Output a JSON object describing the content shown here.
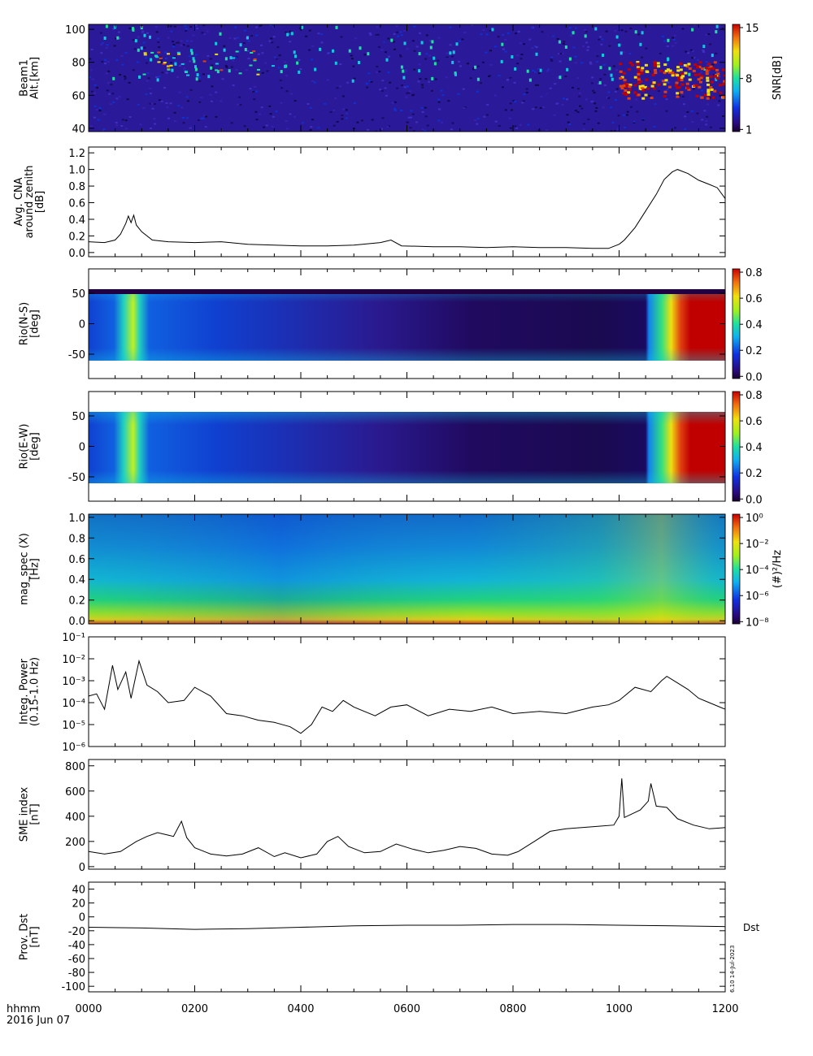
{
  "footer": {
    "time_label": "hhmm",
    "date_label": "2016 Jun 07"
  },
  "x_ticks": [
    "0000",
    "0200",
    "0400",
    "0600",
    "0800",
    "1000",
    "1200"
  ],
  "colors": {
    "plot_line": "#000000",
    "background": "#ffffff"
  },
  "chart_data": [
    {
      "type": "heatmap",
      "name": "beam1",
      "ylabel": [
        "Beam1",
        "Alt.[km]"
      ],
      "yticks": [
        "40",
        "60",
        "80",
        "100"
      ],
      "ylim": [
        38,
        103
      ],
      "colorbar": {
        "label": "SNR[dB]",
        "ticks": [
          "1",
          "8",
          "15"
        ],
        "range": [
          1,
          15
        ]
      }
    },
    {
      "type": "line",
      "name": "cna",
      "ylabel": [
        "Avg. CNA",
        "around zenith",
        "[dB]"
      ],
      "yticks": [
        "0.0",
        "0.2",
        "0.4",
        "0.6",
        "0.8",
        "1.0",
        "1.2"
      ],
      "ylim": [
        -0.05,
        1.27
      ],
      "x_hours": [
        0,
        0.3,
        0.5,
        0.6,
        0.7,
        0.75,
        0.8,
        0.85,
        0.9,
        1.0,
        1.2,
        1.5,
        2,
        2.5,
        3,
        3.5,
        4,
        4.5,
        5,
        5.5,
        5.7,
        5.9,
        6.5,
        7,
        7.5,
        8,
        8.5,
        9,
        9.5,
        9.8,
        10,
        10.1,
        10.3,
        10.5,
        10.7,
        10.85,
        11,
        11.1,
        11.3,
        11.5,
        11.7,
        11.85,
        12
      ],
      "values": [
        0.13,
        0.12,
        0.15,
        0.22,
        0.35,
        0.44,
        0.36,
        0.45,
        0.33,
        0.25,
        0.15,
        0.13,
        0.12,
        0.13,
        0.1,
        0.09,
        0.08,
        0.08,
        0.09,
        0.12,
        0.15,
        0.08,
        0.07,
        0.07,
        0.06,
        0.07,
        0.06,
        0.06,
        0.05,
        0.05,
        0.1,
        0.15,
        0.3,
        0.5,
        0.7,
        0.88,
        0.97,
        1.0,
        0.95,
        0.87,
        0.82,
        0.78,
        0.65
      ]
    },
    {
      "type": "heatmap",
      "name": "rio-ns",
      "ylabel": [
        "Rio(N-S)",
        "[deg]"
      ],
      "yticks": [
        "-50",
        "0",
        "50"
      ],
      "ylim": [
        -90,
        90
      ],
      "colorbar": {
        "label": "",
        "ticks": [
          "0.0",
          "0.2",
          "0.4",
          "0.6",
          "0.8"
        ],
        "range": [
          0,
          0.85
        ]
      }
    },
    {
      "type": "heatmap",
      "name": "rio-ew",
      "ylabel": [
        "Rio(E-W)",
        "[deg]"
      ],
      "yticks": [
        "-50",
        "0",
        "50"
      ],
      "ylim": [
        -90,
        90
      ],
      "colorbar": {
        "label": "",
        "ticks": [
          "0.0",
          "0.2",
          "0.4",
          "0.6",
          "0.8"
        ],
        "range": [
          0,
          0.85
        ]
      }
    },
    {
      "type": "heatmap",
      "name": "mag-spec",
      "ylabel": [
        "mag_spec (X)",
        "[Hz]"
      ],
      "yticks": [
        "0.0",
        "0.2",
        "0.4",
        "0.6",
        "0.8",
        "1.0"
      ],
      "ylim": [
        -0.03,
        1.03
      ],
      "colorbar": {
        "label": "(#)²/Hz",
        "ticks": [
          "10⁻⁸",
          "10⁻⁶",
          "10⁻⁴",
          "10⁻²",
          "10⁰"
        ],
        "range": [
          -9,
          1
        ]
      }
    },
    {
      "type": "line",
      "name": "integ-power",
      "log": true,
      "ylabel": [
        "Integ. Power",
        "(0.15-1.0 Hz)"
      ],
      "yticks": [
        "10⁻⁶",
        "10⁻⁵",
        "10⁻⁴",
        "10⁻³",
        "10⁻²",
        "10⁻¹"
      ],
      "ylim": [
        -6,
        -1
      ],
      "x_hours": [
        0,
        0.15,
        0.3,
        0.45,
        0.55,
        0.7,
        0.8,
        0.95,
        1.1,
        1.3,
        1.5,
        1.8,
        2.0,
        2.3,
        2.6,
        2.9,
        3.2,
        3.5,
        3.8,
        4.0,
        4.2,
        4.4,
        4.6,
        4.8,
        5.0,
        5.4,
        5.7,
        6.0,
        6.4,
        6.8,
        7.2,
        7.6,
        8.0,
        8.5,
        9.0,
        9.5,
        9.8,
        10.0,
        10.3,
        10.6,
        10.8,
        10.9,
        11.1,
        11.3,
        11.5,
        11.7,
        12
      ],
      "values": [
        -3.7,
        -3.6,
        -4.3,
        -2.3,
        -3.4,
        -2.6,
        -3.8,
        -2.1,
        -3.2,
        -3.5,
        -4.0,
        -3.9,
        -3.3,
        -3.7,
        -4.5,
        -4.6,
        -4.8,
        -4.9,
        -5.1,
        -5.4,
        -5.0,
        -4.2,
        -4.4,
        -3.9,
        -4.2,
        -4.6,
        -4.2,
        -4.1,
        -4.6,
        -4.3,
        -4.4,
        -4.2,
        -4.5,
        -4.4,
        -4.5,
        -4.2,
        -4.1,
        -3.9,
        -3.3,
        -3.5,
        -3.0,
        -2.8,
        -3.1,
        -3.4,
        -3.8,
        -4.0,
        -4.3
      ]
    },
    {
      "type": "line",
      "name": "sme",
      "ylabel": [
        "SME index",
        "[nT]"
      ],
      "yticks": [
        "0",
        "200",
        "400",
        "600",
        "800"
      ],
      "ylim": [
        -20,
        850
      ],
      "x_hours": [
        0,
        0.3,
        0.6,
        0.9,
        1.1,
        1.3,
        1.5,
        1.6,
        1.75,
        1.85,
        2.0,
        2.3,
        2.6,
        2.9,
        3.2,
        3.5,
        3.7,
        4.0,
        4.3,
        4.5,
        4.7,
        4.9,
        5.2,
        5.5,
        5.8,
        6.1,
        6.4,
        6.7,
        7.0,
        7.3,
        7.6,
        7.9,
        8.1,
        8.4,
        8.7,
        9.0,
        9.3,
        9.6,
        9.9,
        10.0,
        10.05,
        10.1,
        10.2,
        10.4,
        10.55,
        10.6,
        10.7,
        10.9,
        11.1,
        11.4,
        11.7,
        12
      ],
      "values": [
        120,
        100,
        120,
        200,
        240,
        270,
        250,
        240,
        360,
        230,
        150,
        100,
        85,
        100,
        150,
        80,
        110,
        70,
        100,
        200,
        240,
        160,
        110,
        120,
        180,
        140,
        110,
        130,
        160,
        145,
        100,
        90,
        120,
        200,
        280,
        300,
        310,
        320,
        330,
        400,
        700,
        390,
        410,
        450,
        520,
        660,
        480,
        470,
        380,
        330,
        300,
        310
      ]
    },
    {
      "type": "line",
      "name": "dst",
      "ylabel": [
        "Prov. Dst",
        "[nT]"
      ],
      "yticks": [
        "-100",
        "-80",
        "-60",
        "-40",
        "-20",
        "0",
        "20",
        "40"
      ],
      "ylim": [
        -108,
        50
      ],
      "x_hours": [
        0,
        1,
        2,
        3,
        4,
        5,
        6,
        7,
        8,
        9,
        10,
        11,
        12
      ],
      "values": [
        -15,
        -16,
        -18,
        -17,
        -15,
        -13,
        -12,
        -12,
        -11,
        -11,
        -12,
        -13,
        -14
      ],
      "annotation": "Dst",
      "side_note": "6.10 14-Jul-2023"
    }
  ]
}
